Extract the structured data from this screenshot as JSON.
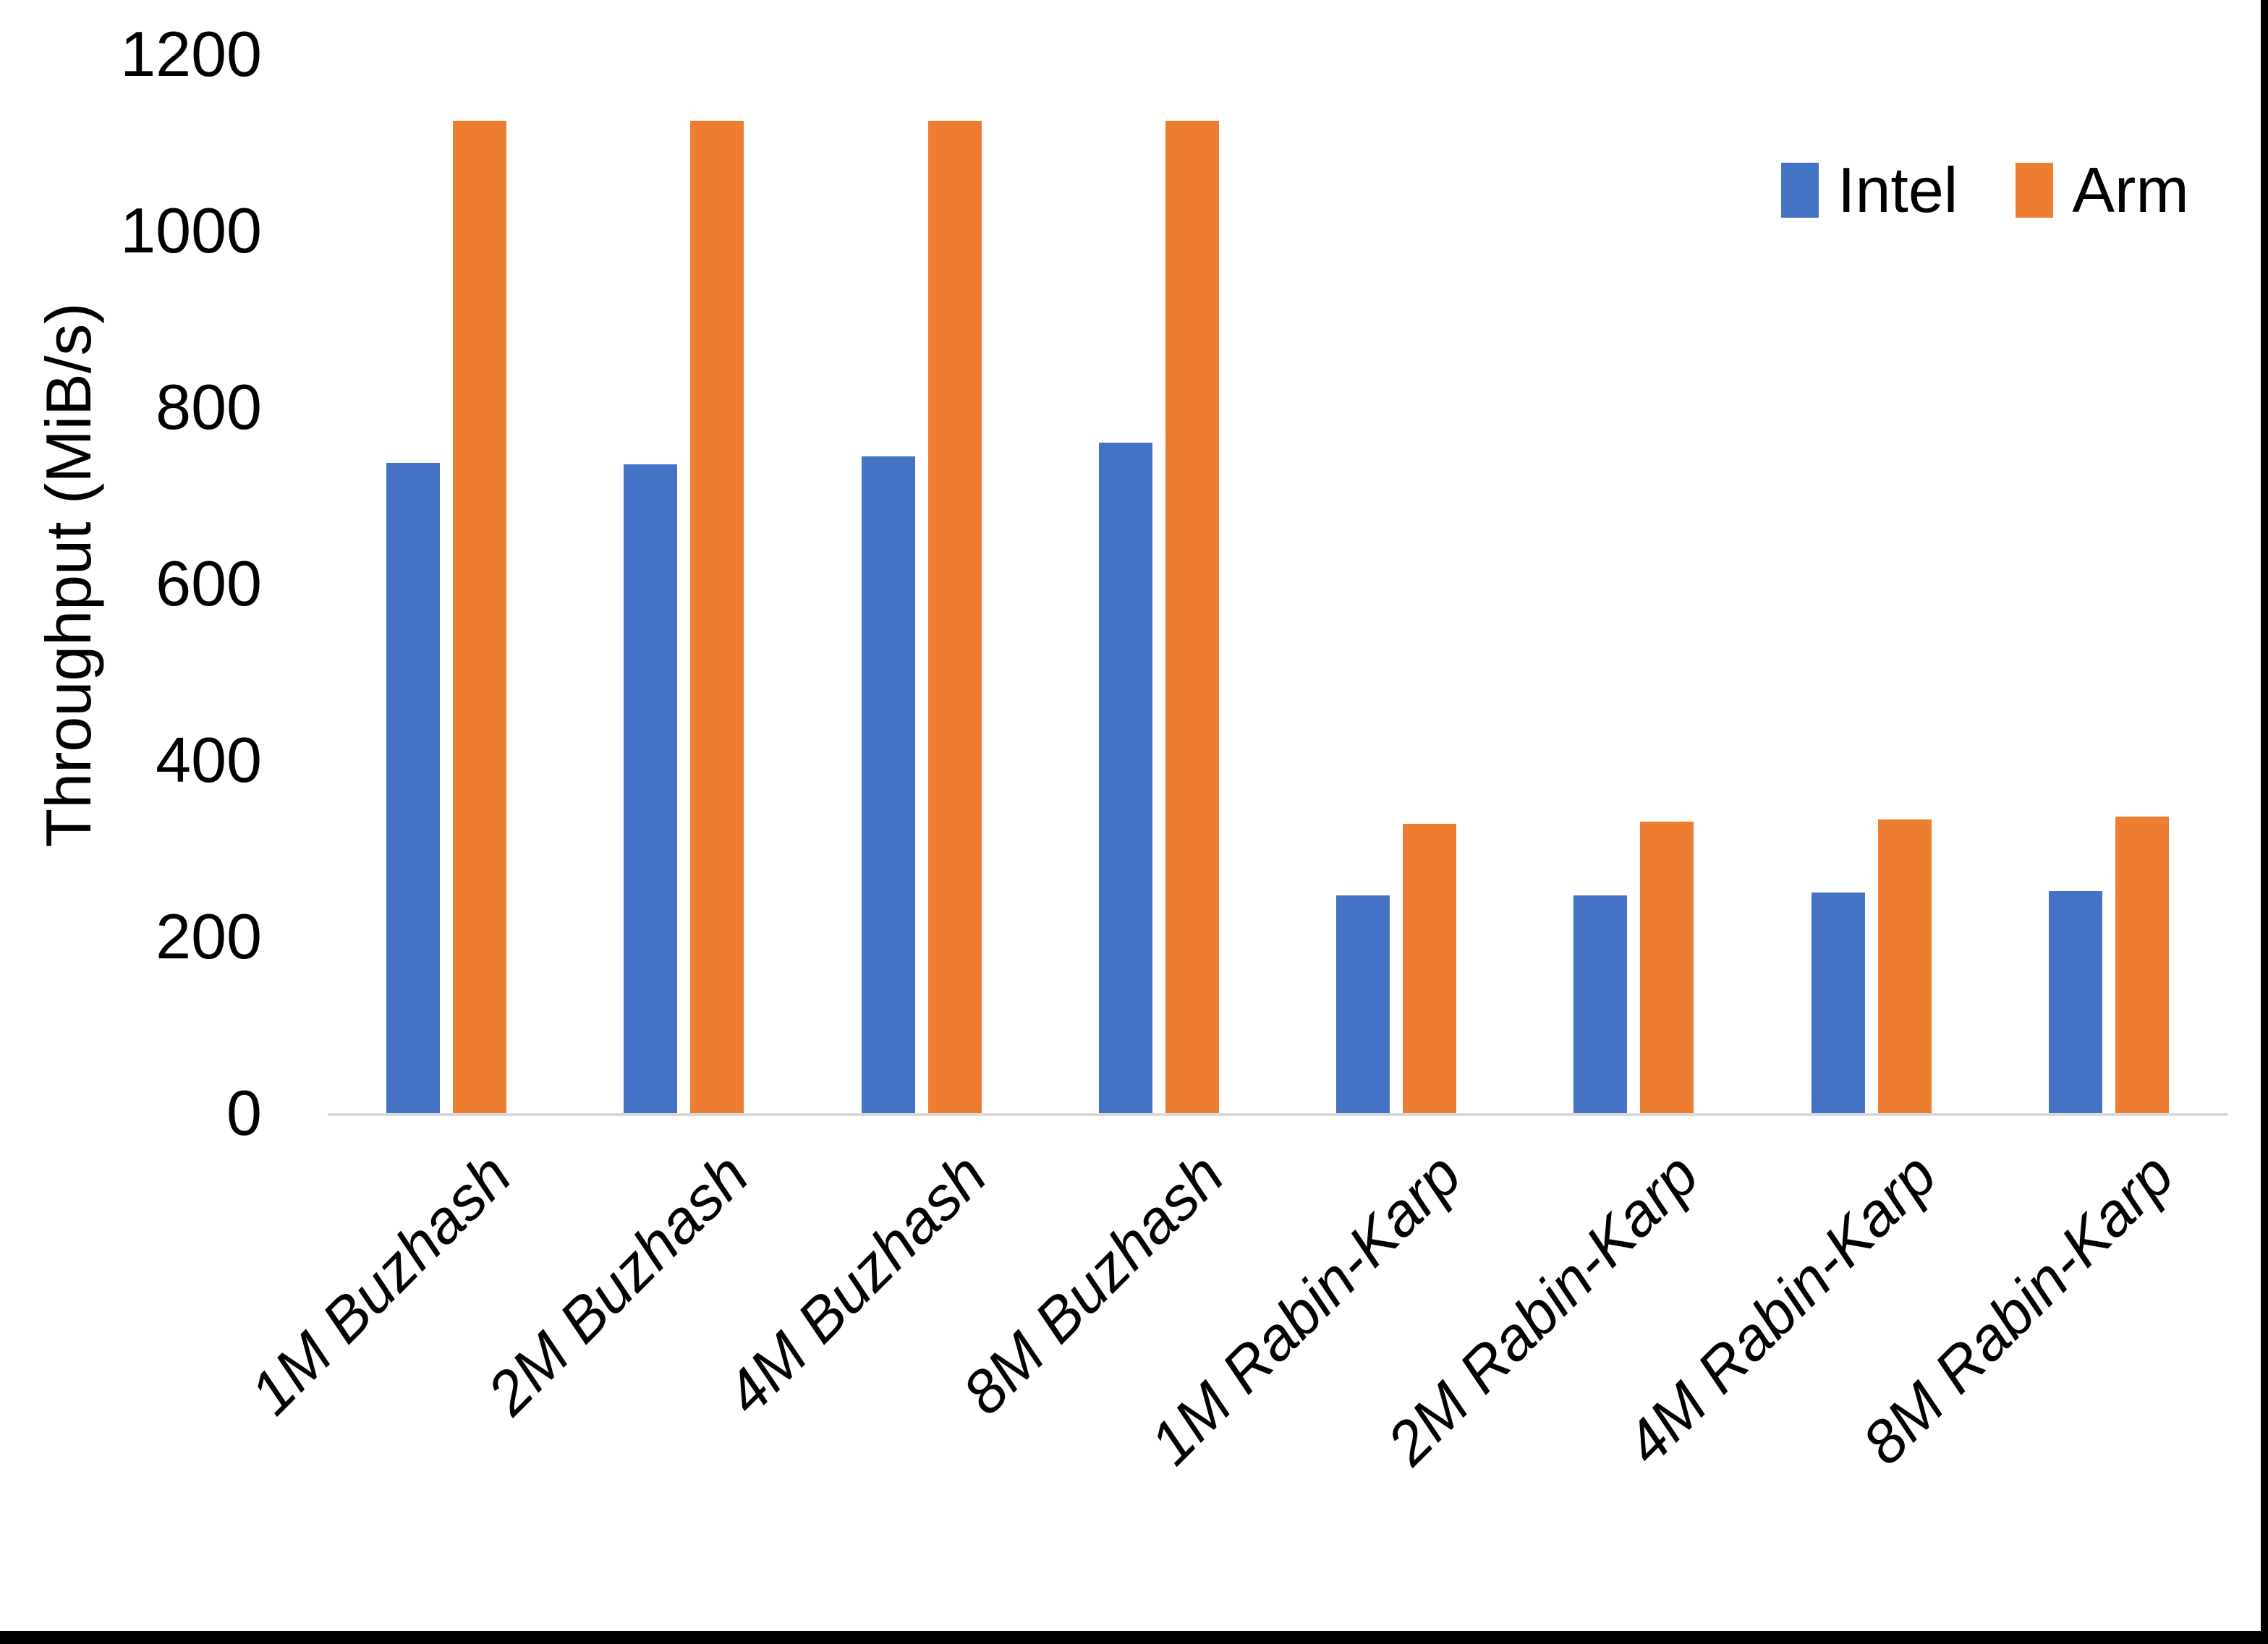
{
  "page": {
    "background": "#FFFFFF",
    "edge_border_color": "#000000",
    "axis_line_color": "#D9D9D9",
    "text_color": "#000000"
  },
  "chart_data": {
    "type": "bar",
    "title": "",
    "ylabel": "Throughput (MiB/s)",
    "xlabel": "",
    "ylim": [
      0,
      1200
    ],
    "yticks": [
      0,
      200,
      400,
      600,
      800,
      1000,
      1200
    ],
    "grid": false,
    "legend_position": "top-right",
    "categories": [
      "1M Buzhash",
      "2M Buzhash",
      "4M Buzhash",
      "8M Buzhash",
      "1M Rabin-Karp",
      "2M Rabin-Karp",
      "4M Rabin-Karp",
      "8M Rabin-Karp"
    ],
    "series": [
      {
        "name": "Intel",
        "color": "#4472C4",
        "values": [
          737,
          735,
          744,
          760,
          247,
          247,
          250,
          252
        ]
      },
      {
        "name": "Arm",
        "color": "#ED7D31",
        "values": [
          1125,
          1125,
          1125,
          1125,
          328,
          330,
          333,
          336
        ]
      }
    ]
  }
}
